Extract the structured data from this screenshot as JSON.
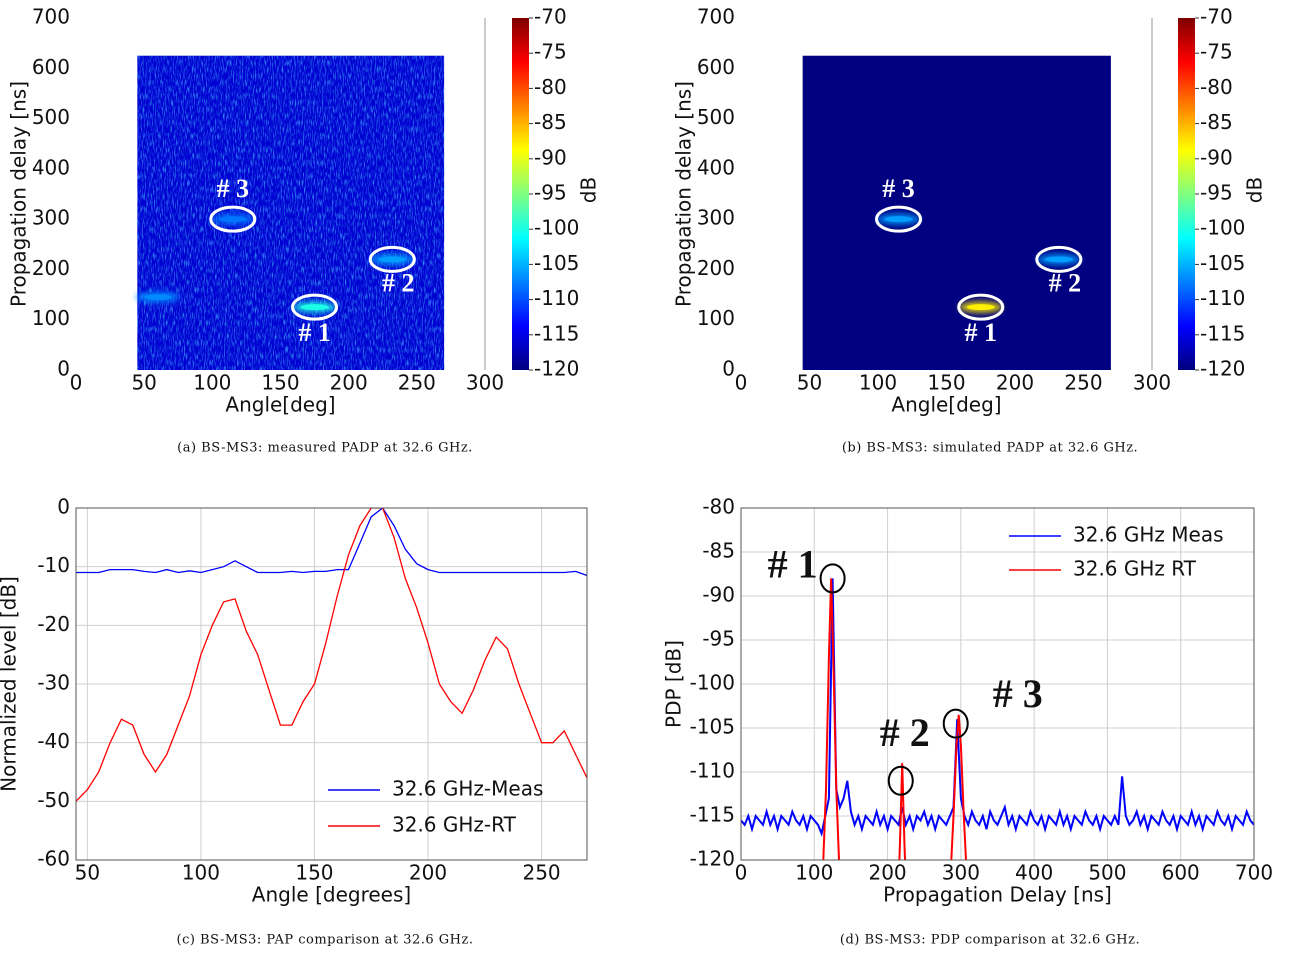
{
  "chart_data": [
    {
      "type": "heatmap",
      "caption": "(a) BS-MS3: measured PADP at 32.6 GHz.",
      "xlabel": "Angle[deg]",
      "ylabel": "Propagation delay [ns]",
      "colorbar_label": "dB",
      "xlim": [
        0,
        300
      ],
      "ylim": [
        0,
        700
      ],
      "xticks": [
        0,
        50,
        100,
        150,
        200,
        250,
        300
      ],
      "yticks": [
        0,
        100,
        200,
        300,
        400,
        500,
        600,
        700
      ],
      "map_xlim": [
        45,
        270
      ],
      "map_ylim": [
        0,
        625
      ],
      "background_level": -116,
      "noisy": true,
      "colormap": "jet",
      "clim": [
        -120,
        -70
      ],
      "cticks": [
        -70,
        -75,
        -80,
        -85,
        -90,
        -95,
        -100,
        -105,
        -110,
        -115,
        -120
      ],
      "spots": [
        {
          "x": 175,
          "y": 125,
          "level": -100,
          "label": "# 1"
        },
        {
          "x": 232,
          "y": 220,
          "level": -106,
          "label": "# 2"
        },
        {
          "x": 115,
          "y": 300,
          "level": -108,
          "label": "# 3"
        },
        {
          "x": 60,
          "y": 145,
          "level": -107
        }
      ]
    },
    {
      "type": "heatmap",
      "caption": "(b) BS-MS3: simulated PADP at 32.6 GHz.",
      "xlabel": "Angle[deg]",
      "ylabel": "Propagation delay [ns]",
      "colorbar_label": "dB",
      "xlim": [
        0,
        300
      ],
      "ylim": [
        0,
        700
      ],
      "xticks": [
        0,
        50,
        100,
        150,
        200,
        250,
        300
      ],
      "yticks": [
        0,
        100,
        200,
        300,
        400,
        500,
        600,
        700
      ],
      "map_xlim": [
        45,
        270
      ],
      "map_ylim": [
        0,
        625
      ],
      "background_level": -120,
      "noisy": false,
      "colormap": "jet",
      "clim": [
        -120,
        -70
      ],
      "cticks": [
        -70,
        -75,
        -80,
        -85,
        -90,
        -95,
        -100,
        -105,
        -110,
        -115,
        -120
      ],
      "spots": [
        {
          "x": 175,
          "y": 125,
          "level": -88,
          "label": "# 1"
        },
        {
          "x": 232,
          "y": 220,
          "level": -106,
          "label": "# 2"
        },
        {
          "x": 115,
          "y": 300,
          "level": -106,
          "label": "# 3"
        }
      ]
    },
    {
      "type": "line",
      "caption": "(c) BS-MS3: PAP comparison at 32.6 GHz.",
      "xlabel": "Angle [degrees]",
      "ylabel": "Normalized level [dB]",
      "grid": true,
      "legend": "lower right",
      "xlim": [
        45,
        270
      ],
      "ylim": [
        -60,
        0
      ],
      "xticks": [
        50,
        100,
        150,
        200,
        250
      ],
      "yticks": [
        0,
        -10,
        -20,
        -30,
        -40,
        -50,
        -60
      ],
      "x": [
        45,
        50,
        55,
        60,
        65,
        70,
        75,
        80,
        85,
        90,
        95,
        100,
        105,
        110,
        115,
        120,
        125,
        130,
        135,
        140,
        145,
        150,
        155,
        160,
        165,
        170,
        175,
        180,
        185,
        190,
        195,
        200,
        205,
        210,
        215,
        220,
        225,
        230,
        235,
        240,
        245,
        250,
        255,
        260,
        265,
        270
      ],
      "series": [
        {
          "name": "32.6 GHz-Meas",
          "color": "#0000ff",
          "values": [
            -11,
            -11,
            -11,
            -10.5,
            -10.5,
            -10.5,
            -10.8,
            -11,
            -10.5,
            -11,
            -10.7,
            -11,
            -10.5,
            -10,
            -9,
            -10,
            -11,
            -11,
            -11,
            -10.8,
            -11,
            -10.8,
            -10.8,
            -10.5,
            -10.5,
            -6,
            -1.5,
            0,
            -3,
            -7,
            -9.5,
            -10.5,
            -11,
            -11,
            -11,
            -11,
            -11,
            -11,
            -11,
            -11,
            -11,
            -11,
            -11,
            -11,
            -10.8,
            -11.5
          ]
        },
        {
          "name": "32.6 GHz-RT",
          "color": "#ff0000",
          "values": [
            -50,
            -48,
            -45,
            -40,
            -36,
            -37,
            -42,
            -45,
            -42,
            -37,
            -32,
            -25,
            -20,
            -16,
            -15.5,
            -21,
            -25,
            -31,
            -37,
            -37,
            -33,
            -30,
            -23,
            -15,
            -8,
            -3,
            0,
            0,
            -5,
            -12,
            -17,
            -23,
            -30,
            -33,
            -35,
            -31,
            -26,
            -22,
            -24,
            -30,
            -35,
            -40,
            -40,
            -38,
            -42,
            -46
          ]
        }
      ]
    },
    {
      "type": "line",
      "caption": "(d) BS-MS3: PDP comparison at 32.6 GHz.",
      "xlabel": "Propagation Delay [ns]",
      "ylabel": "PDP [dB]",
      "grid": true,
      "legend": "upper right",
      "xlim": [
        0,
        700
      ],
      "ylim": [
        -120,
        -80
      ],
      "xticks": [
        0,
        100,
        200,
        300,
        400,
        500,
        600,
        700
      ],
      "yticks": [
        -80,
        -85,
        -90,
        -95,
        -100,
        -105,
        -110,
        -115,
        -120
      ],
      "annotations": [
        {
          "text": "# 1",
          "x": 125,
          "y": -88
        },
        {
          "text": "# 2",
          "x": 218,
          "y": -111
        },
        {
          "text": "# 3",
          "x": 293,
          "y": -104.5
        }
      ],
      "series": [
        {
          "name": "32.6 GHz Meas",
          "color": "#0000ff",
          "x": [
            0,
            5,
            10,
            15,
            20,
            25,
            30,
            35,
            40,
            45,
            50,
            55,
            60,
            65,
            70,
            75,
            80,
            85,
            90,
            95,
            100,
            105,
            110,
            115,
            120,
            125,
            130,
            135,
            140,
            145,
            150,
            155,
            160,
            165,
            170,
            175,
            180,
            185,
            190,
            195,
            200,
            205,
            210,
            215,
            220,
            225,
            230,
            235,
            240,
            245,
            250,
            255,
            260,
            265,
            270,
            275,
            280,
            285,
            290,
            295,
            300,
            305,
            310,
            315,
            320,
            325,
            330,
            335,
            340,
            345,
            350,
            355,
            360,
            365,
            370,
            375,
            380,
            385,
            390,
            395,
            400,
            405,
            410,
            415,
            420,
            425,
            430,
            435,
            440,
            445,
            450,
            455,
            460,
            465,
            470,
            475,
            480,
            485,
            490,
            495,
            500,
            505,
            510,
            515,
            520,
            525,
            530,
            535,
            540,
            545,
            550,
            555,
            560,
            565,
            570,
            575,
            580,
            585,
            590,
            595,
            600,
            605,
            610,
            615,
            620,
            625,
            630,
            635,
            640,
            645,
            650,
            655,
            660,
            665,
            670,
            675,
            680,
            685,
            690,
            695,
            700
          ],
          "values": [
            -115.5,
            -116,
            -115,
            -116.5,
            -115,
            -115.5,
            -116,
            -114.5,
            -116,
            -115,
            -116.5,
            -115,
            -115.5,
            -116,
            -114.5,
            -115.5,
            -116,
            -115,
            -116.5,
            -115,
            -115.5,
            -116,
            -117,
            -115,
            -113,
            -88,
            -112,
            -114,
            -113,
            -111,
            -114.5,
            -116,
            -115,
            -116.5,
            -115,
            -115.5,
            -116,
            -114.5,
            -116,
            -115,
            -116.5,
            -115,
            -115.5,
            -116,
            -114,
            -116,
            -115,
            -116.5,
            -115,
            -115.5,
            -114.5,
            -116,
            -115,
            -116.5,
            -115,
            -115.5,
            -116,
            -115,
            -114,
            -104,
            -113,
            -115,
            -116,
            -114.5,
            -115.5,
            -116,
            -115,
            -116.5,
            -114.5,
            -115.5,
            -116,
            -115,
            -114,
            -116,
            -115,
            -116.5,
            -115,
            -115.5,
            -116,
            -114.5,
            -115.5,
            -116,
            -115,
            -116.5,
            -115,
            -115.5,
            -116,
            -114.5,
            -116,
            -115,
            -116.5,
            -115,
            -115.5,
            -116,
            -114.5,
            -115.5,
            -116,
            -115,
            -116.5,
            -115,
            -115.5,
            -116,
            -115,
            -116,
            -110.5,
            -115,
            -116,
            -115.5,
            -114.5,
            -116,
            -115,
            -116.5,
            -115,
            -115.5,
            -116,
            -114.5,
            -115.5,
            -116,
            -115,
            -116.5,
            -115,
            -115.5,
            -116,
            -114.5,
            -116,
            -115,
            -116.5,
            -115,
            -115.5,
            -116,
            -114.5,
            -115.5,
            -116,
            -115,
            -116.5,
            -115,
            -115.5,
            -116,
            -114.5,
            -115.5,
            -116
          ]
        },
        {
          "name": "32.6 GHz RT",
          "color": "#ff0000",
          "x": [
            110,
            116,
            120,
            123,
            126,
            130,
            136,
            200,
            214,
            217,
            220,
            223,
            226,
            240,
            284,
            290,
            294,
            297,
            300,
            304,
            310
          ],
          "values": [
            -125,
            -112,
            -97,
            -88,
            -97,
            -112,
            -125,
            null,
            -125,
            -118,
            -109,
            -118,
            -125,
            null,
            -125,
            -115,
            -107,
            -103.5,
            -107,
            -115,
            -125
          ]
        }
      ]
    }
  ]
}
